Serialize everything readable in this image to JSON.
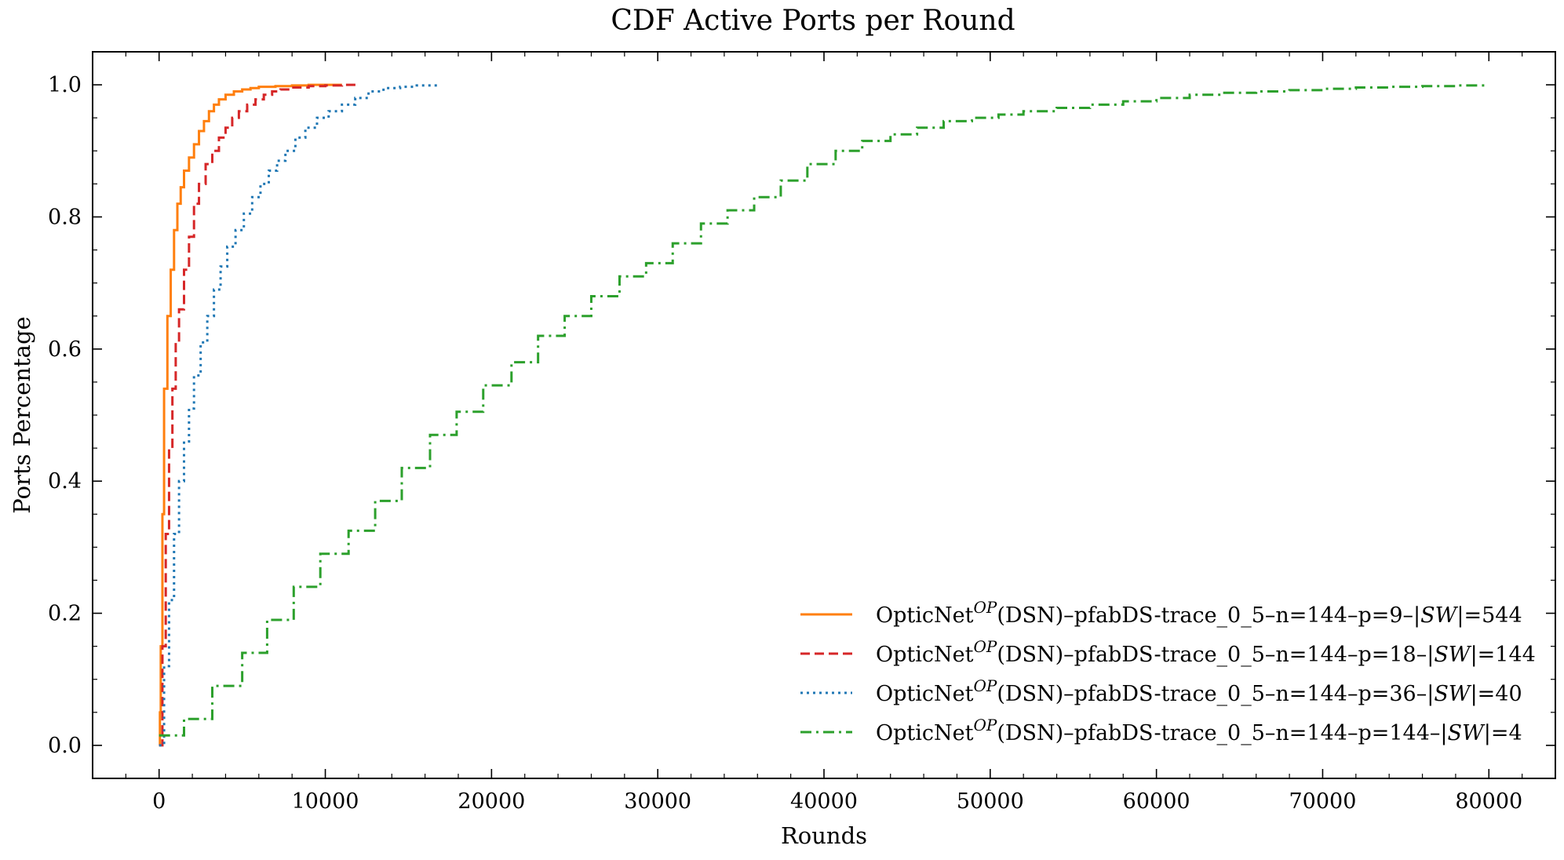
{
  "chart_data": {
    "type": "line",
    "title": "CDF Active Ports per Round",
    "xlabel": "Rounds",
    "ylabel": "Ports Percentage",
    "xlim": [
      -4000,
      84000
    ],
    "ylim": [
      -0.05,
      1.05
    ],
    "xticks": [
      0,
      10000,
      20000,
      30000,
      40000,
      50000,
      60000,
      70000,
      80000
    ],
    "yticks": [
      0.0,
      0.2,
      0.4,
      0.6,
      0.8,
      1.0
    ],
    "xtick_labels": [
      "0",
      "10000",
      "20000",
      "30000",
      "40000",
      "50000",
      "60000",
      "70000",
      "80000"
    ],
    "ytick_labels": [
      "0.0",
      "0.2",
      "0.4",
      "0.6",
      "0.8",
      "1.0"
    ],
    "grid": false,
    "legend_position": "lower-right",
    "series": [
      {
        "name": "OpticNet",
        "name_sup": "OP",
        "name_rest": "(DSN)–pfabDS-trace_0_5–n=144–p=9–|",
        "name_italic": "SW",
        "name_end": "|=544",
        "color": "#ff7f0e",
        "style": "solid",
        "x": [
          0,
          50,
          100,
          200,
          300,
          500,
          700,
          900,
          1100,
          1300,
          1500,
          1800,
          2100,
          2400,
          2700,
          3000,
          3300,
          3600,
          4000,
          4500,
          5000,
          5500,
          6000,
          7000,
          8000,
          9000,
          10000,
          11000
        ],
        "y": [
          0.0,
          0.05,
          0.15,
          0.35,
          0.54,
          0.65,
          0.72,
          0.78,
          0.82,
          0.845,
          0.87,
          0.89,
          0.91,
          0.93,
          0.945,
          0.96,
          0.97,
          0.978,
          0.985,
          0.99,
          0.993,
          0.995,
          0.997,
          0.998,
          0.999,
          1.0,
          1.0,
          1.0
        ]
      },
      {
        "name": "OpticNet",
        "name_sup": "OP",
        "name_rest": "(DSN)–pfabDS-trace_0_5–n=144–p=18–|",
        "name_italic": "SW",
        "name_end": "|=144",
        "color": "#d62728",
        "style": "dashed",
        "x": [
          0,
          200,
          400,
          600,
          800,
          1000,
          1200,
          1500,
          1800,
          2100,
          2400,
          2800,
          3200,
          3600,
          4000,
          4400,
          4800,
          5300,
          5800,
          6300,
          6800,
          7300,
          8000,
          9000,
          10000,
          11000,
          12000
        ],
        "y": [
          0.0,
          0.15,
          0.32,
          0.45,
          0.54,
          0.61,
          0.66,
          0.72,
          0.77,
          0.82,
          0.85,
          0.88,
          0.9,
          0.92,
          0.935,
          0.95,
          0.96,
          0.97,
          0.978,
          0.985,
          0.99,
          0.993,
          0.996,
          0.998,
          0.999,
          1.0,
          1.0
        ]
      },
      {
        "name": "OpticNet",
        "name_sup": "OP",
        "name_rest": "(DSN)–pfabDS-trace_0_5–n=144–p=36–|",
        "name_italic": "SW",
        "name_end": "|=40",
        "color": "#1f77b4",
        "style": "dotted",
        "x": [
          0,
          300,
          600,
          900,
          1200,
          1500,
          1800,
          2100,
          2500,
          2900,
          3300,
          3700,
          4100,
          4600,
          5100,
          5600,
          6100,
          6600,
          7100,
          7600,
          8200,
          8800,
          9500,
          10200,
          11000,
          11800,
          12600,
          13500,
          14500,
          15500,
          16800
        ],
        "y": [
          0.0,
          0.12,
          0.22,
          0.32,
          0.4,
          0.46,
          0.51,
          0.56,
          0.61,
          0.65,
          0.69,
          0.725,
          0.755,
          0.78,
          0.805,
          0.83,
          0.85,
          0.87,
          0.885,
          0.9,
          0.92,
          0.935,
          0.95,
          0.96,
          0.97,
          0.98,
          0.99,
          0.995,
          0.997,
          0.999,
          1.0
        ]
      },
      {
        "name": "OpticNet",
        "name_sup": "OP",
        "name_rest": "(DSN)–pfabDS-trace_0_5–n=144–p=144–|",
        "name_italic": "SW",
        "name_end": "|=4",
        "color": "#2ca02c",
        "style": "dashdot",
        "x": [
          0,
          1500,
          3200,
          5000,
          6500,
          8100,
          9700,
          11400,
          13000,
          14600,
          16300,
          17900,
          19500,
          21200,
          22800,
          24400,
          26000,
          27700,
          29300,
          30900,
          32600,
          34200,
          35800,
          37400,
          39000,
          40700,
          42300,
          44000,
          45600,
          47200,
          48900,
          50500,
          52000,
          54000,
          56000,
          58000,
          60000,
          62000,
          64000,
          66000,
          68000,
          70000,
          72000,
          74000,
          76000,
          78000,
          79800
        ],
        "y": [
          0.015,
          0.04,
          0.09,
          0.14,
          0.19,
          0.24,
          0.29,
          0.325,
          0.37,
          0.42,
          0.47,
          0.505,
          0.545,
          0.58,
          0.62,
          0.65,
          0.68,
          0.71,
          0.73,
          0.76,
          0.79,
          0.81,
          0.83,
          0.855,
          0.88,
          0.9,
          0.915,
          0.925,
          0.935,
          0.945,
          0.95,
          0.955,
          0.96,
          0.965,
          0.97,
          0.975,
          0.98,
          0.985,
          0.988,
          0.99,
          0.992,
          0.994,
          0.996,
          0.997,
          0.998,
          0.999,
          1.0
        ]
      }
    ]
  }
}
